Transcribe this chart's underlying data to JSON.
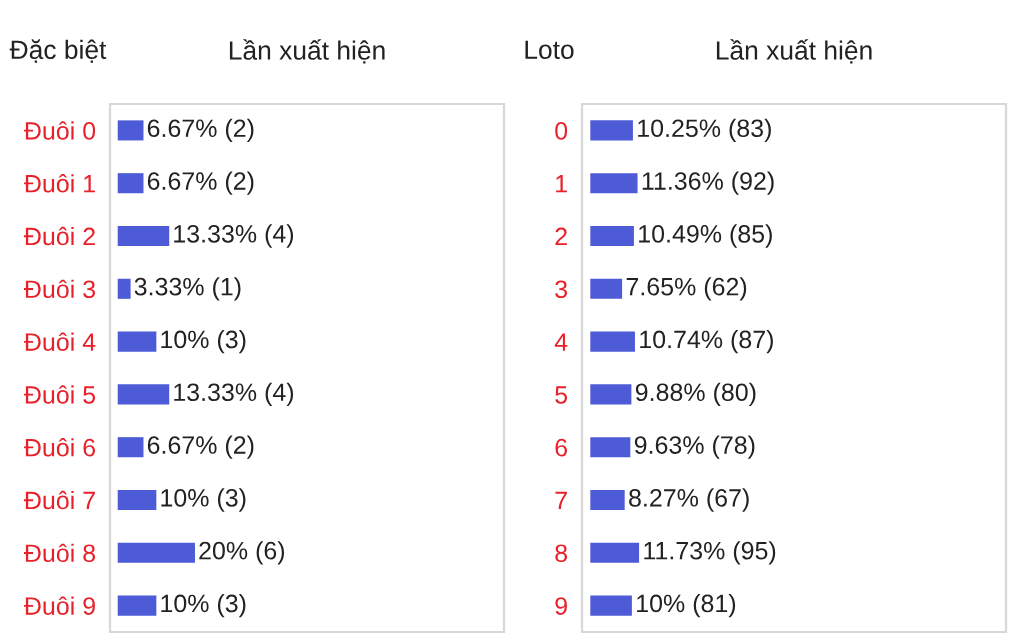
{
  "chart_data": [
    {
      "type": "bar",
      "orientation": "horizontal",
      "xlabel": "Lần xuất hiện",
      "ylabel": "Đặc biệt",
      "categories": [
        "Đuôi 0",
        "Đuôi 1",
        "Đuôi 2",
        "Đuôi 3",
        "Đuôi 4",
        "Đuôi 5",
        "Đuôi 6",
        "Đuôi 7",
        "Đuôi 8",
        "Đuôi 9"
      ],
      "values": [
        6.67,
        6.67,
        13.33,
        3.33,
        10,
        13.33,
        6.67,
        10,
        20,
        10
      ],
      "value_labels": [
        "6.67% (2)",
        "6.67% (2)",
        "13.33% (4)",
        "3.33% (1)",
        "10% (3)",
        "13.33% (4)",
        "6.67% (2)",
        "10% (3)",
        "20% (6)",
        "10% (3)"
      ],
      "color": "#4e5bd6"
    },
    {
      "type": "bar",
      "orientation": "horizontal",
      "xlabel": "Lần xuất hiện",
      "ylabel": "Loto",
      "categories": [
        "0",
        "1",
        "2",
        "3",
        "4",
        "5",
        "6",
        "7",
        "8",
        "9"
      ],
      "values": [
        10.25,
        11.36,
        10.49,
        7.65,
        10.74,
        9.88,
        9.63,
        8.27,
        11.73,
        10
      ],
      "value_labels": [
        "10.25% (83)",
        "11.36% (92)",
        "10.49% (85)",
        "7.65% (62)",
        "10.74% (87)",
        "9.88% (80)",
        "9.63% (78)",
        "8.27% (67)",
        "11.73% (95)",
        "10% (81)"
      ],
      "color": "#4e5bd6"
    }
  ]
}
